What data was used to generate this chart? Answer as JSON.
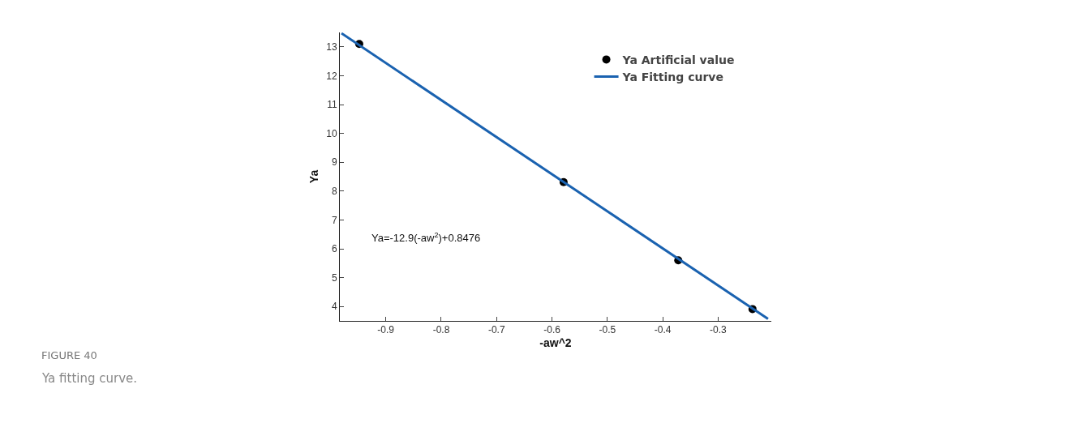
{
  "chart_data": {
    "type": "scatter",
    "xlabel": "-aw^2",
    "ylabel": "Ya",
    "annotations": [
      "Ya=-12.9(-aw$^{2}$)+0.8476",
      "FIGURE 40",
      "Ya fitting curve."
    ],
    "series": [
      {
        "name": "Ya Artificial value",
        "color": "#000000",
        "marker": "circle",
        "x": [
          -0.948,
          -0.579,
          -0.372,
          -0.238
        ],
        "values": [
          13.1,
          8.31,
          5.6,
          3.91
        ]
      },
      {
        "name": "Ya Fitting curve",
        "type": "line",
        "color": "#1a62b0",
        "marker": "none",
        "line_style": "solid",
        "x": [
          -0.98,
          -0.21
        ],
        "values": [
          13.47,
          3.57
        ]
      }
    ],
    "xlim": [
      -0.983,
      -0.204
    ],
    "xticks": [
      -0.9,
      -0.8,
      -0.7,
      -0.6,
      -0.5,
      -0.4,
      -0.3
    ],
    "ylim": [
      3.5,
      13.5
    ],
    "yticks": [
      4,
      5,
      6,
      7,
      8,
      9,
      10,
      11,
      12,
      13
    ],
    "grid": false,
    "legend": "top right"
  }
}
